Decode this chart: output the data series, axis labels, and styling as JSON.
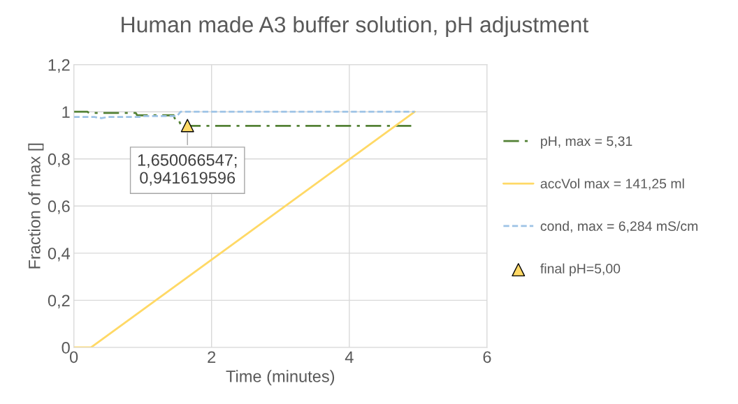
{
  "chart_data": {
    "type": "line",
    "title": "Human made A3 buffer solution, pH adjustment",
    "xlabel": "Time (minutes)",
    "ylabel": "Fraction of max []",
    "xlim": [
      0,
      6
    ],
    "xticks": [
      0,
      2,
      4,
      6
    ],
    "ylim": [
      0,
      1.2
    ],
    "yticks": [
      0,
      {
        "value": 0.2,
        "label": "0,2"
      },
      {
        "value": 0.4,
        "label": "0,4"
      },
      {
        "value": 0.6,
        "label": "0,6"
      },
      {
        "value": 0.8,
        "label": "0,8"
      },
      1,
      {
        "value": 1.2,
        "label": "1,2"
      }
    ],
    "grid": true,
    "legend": "right",
    "marker": "none",
    "series": [
      {
        "name": "pH, max = 5,31",
        "color": "#538135",
        "line_style": "dashdot",
        "x": [
          0,
          0.2,
          0.22,
          0.9,
          0.92,
          1.45,
          1.48,
          1.53,
          1.56,
          4.94
        ],
        "values": [
          1,
          1,
          0.995,
          0.995,
          0.985,
          0.985,
          0.96,
          0.96,
          0.94,
          0.94
        ]
      },
      {
        "name": "accVol max = 141,25 ml",
        "color": "#ffd966",
        "line_style": "solid",
        "x": [
          0,
          0.25,
          4.95
        ],
        "values": [
          0,
          0,
          1
        ]
      },
      {
        "name": "cond, max = 6,284 mS/cm",
        "color": "#9dc3e6",
        "line_style": "dashed",
        "x": [
          0,
          0.3,
          0.4,
          0.5,
          0.95,
          1.0,
          1.5,
          1.55,
          4.95
        ],
        "values": [
          0.978,
          0.978,
          0.973,
          0.978,
          0.978,
          0.982,
          0.982,
          1.0,
          1.0
        ]
      },
      {
        "name": "final pH=5,00",
        "type": "scatter",
        "marker": "triangle",
        "color": "#ffd966",
        "x": [
          1.650066547
        ],
        "values": [
          0.941619596
        ]
      }
    ],
    "annotations": [
      {
        "text": "1,650066547;\n0,941619596",
        "x": 1.650066547,
        "y": 0.941619596
      }
    ]
  }
}
